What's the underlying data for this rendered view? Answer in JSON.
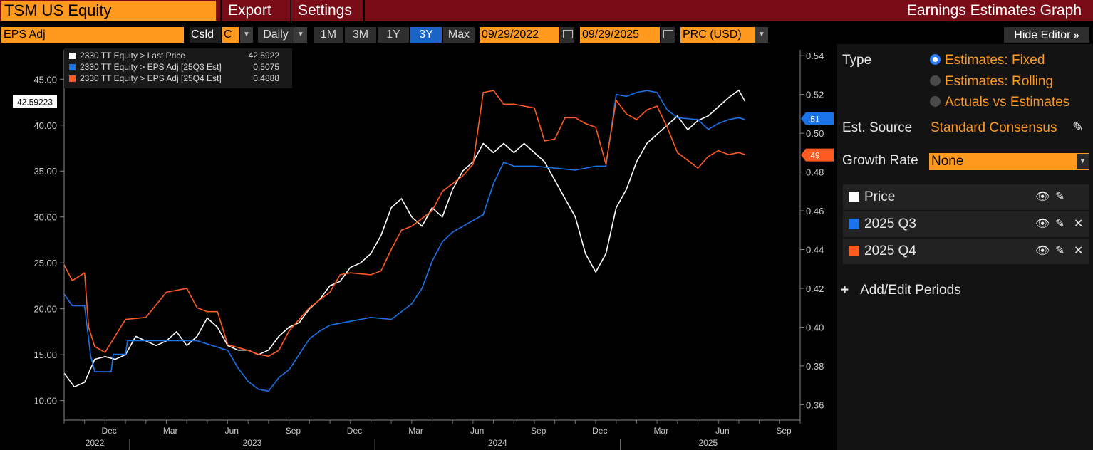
{
  "header": {
    "ticker": "TSM US Equity",
    "menu": [
      "Export",
      "Settings"
    ],
    "window_title": "Earnings Estimates Graph"
  },
  "toolbar": {
    "field": "EPS Adj",
    "csld_label": "Csld",
    "csld_value": "C",
    "periodicity": "Daily",
    "ranges": [
      "1M",
      "3M",
      "1Y",
      "3Y",
      "Max"
    ],
    "active_range": "3Y",
    "start_date": "09/29/2022",
    "end_date": "09/29/2025",
    "currency": "PRC (USD)",
    "hide_editor": "Hide Editor"
  },
  "legend": [
    {
      "name": "2330 TT Equity > Last Price",
      "value": "42.5922",
      "color": "#ffffff"
    },
    {
      "name": "2330 TT Equity > EPS Adj [25Q3 Est]",
      "value": "0.5075",
      "color": "#1a73e8"
    },
    {
      "name": "2330 TT Equity > EPS Adj [25Q4 Est]",
      "value": "0.4888",
      "color": "#ff5a1f"
    }
  ],
  "chart_data": {
    "type": "line",
    "left_axis": {
      "ticks": [
        "45.00",
        "40.00",
        "35.00",
        "30.00",
        "25.00",
        "20.00",
        "15.00",
        "10.00"
      ],
      "range": [
        8.5,
        48.2
      ]
    },
    "right_axis": {
      "ticks": [
        "0.54",
        "0.52",
        "0.50",
        "0.48",
        "0.46",
        "0.44",
        "0.42",
        "0.40",
        "0.38",
        "0.36"
      ],
      "range": [
        0.355,
        0.543
      ]
    },
    "x_months": [
      "Dec",
      "Mar",
      "Jun",
      "Sep",
      "Dec",
      "Mar",
      "Jun",
      "Sep",
      "Dec",
      "Mar",
      "Jun",
      "Sep"
    ],
    "x_years": [
      "2022",
      "2023",
      "2024",
      "2025"
    ],
    "last_price_label": "42.59223",
    "q3_label": ".51",
    "q4_label": ".49",
    "x_range_months": [
      0,
      36
    ],
    "series": [
      {
        "name": "Last Price",
        "axis": "left",
        "color": "#ffffff",
        "points": [
          [
            0,
            13
          ],
          [
            0.5,
            11.5
          ],
          [
            1,
            12
          ],
          [
            1.5,
            14.5
          ],
          [
            2,
            14.8
          ],
          [
            2.5,
            14.5
          ],
          [
            3,
            15
          ],
          [
            3.5,
            17
          ],
          [
            4,
            16.5
          ],
          [
            4.5,
            16
          ],
          [
            5,
            16.5
          ],
          [
            5.5,
            17.5
          ],
          [
            6,
            16
          ],
          [
            6.5,
            17
          ],
          [
            7,
            19
          ],
          [
            7.5,
            18
          ],
          [
            8,
            16
          ],
          [
            8.5,
            15.5
          ],
          [
            9,
            15.5
          ],
          [
            9.5,
            15
          ],
          [
            10,
            15.5
          ],
          [
            10.5,
            17
          ],
          [
            11,
            18
          ],
          [
            11.5,
            18.5
          ],
          [
            12,
            20
          ],
          [
            12.5,
            21
          ],
          [
            13,
            22.5
          ],
          [
            13.5,
            23
          ],
          [
            14,
            24.5
          ],
          [
            14.5,
            25
          ],
          [
            15,
            26
          ],
          [
            15.5,
            28
          ],
          [
            16,
            31
          ],
          [
            16.5,
            32
          ],
          [
            17,
            30
          ],
          [
            17.5,
            29
          ],
          [
            18,
            31
          ],
          [
            18.5,
            30
          ],
          [
            19,
            33
          ],
          [
            19.5,
            35
          ],
          [
            20,
            36
          ],
          [
            20.5,
            38
          ],
          [
            21,
            37
          ],
          [
            21.5,
            38
          ],
          [
            22,
            37
          ],
          [
            22.5,
            38
          ],
          [
            23,
            37
          ],
          [
            23.5,
            36
          ],
          [
            24,
            34
          ],
          [
            24.5,
            32
          ],
          [
            25,
            30
          ],
          [
            25.5,
            26
          ],
          [
            26,
            24
          ],
          [
            26.5,
            26
          ],
          [
            27,
            31
          ],
          [
            27.5,
            33
          ],
          [
            28,
            36
          ],
          [
            28.5,
            38
          ],
          [
            29,
            39
          ],
          [
            29.5,
            40
          ],
          [
            30,
            41
          ],
          [
            30.5,
            39.5
          ],
          [
            31,
            40.5
          ],
          [
            31.5,
            41
          ],
          [
            32,
            42
          ],
          [
            32.5,
            43
          ],
          [
            33,
            43.8
          ],
          [
            33.3,
            42.6
          ]
        ]
      },
      {
        "name": "EPS Adj [25Q3 Est]",
        "axis": "right",
        "color": "#1a73e8",
        "points": [
          [
            0,
            0.417
          ],
          [
            0.4,
            0.411
          ],
          [
            1,
            0.411
          ],
          [
            1.3,
            0.385
          ],
          [
            1.5,
            0.377
          ],
          [
            2.3,
            0.377
          ],
          [
            2.4,
            0.386
          ],
          [
            3,
            0.386
          ],
          [
            3.1,
            0.393
          ],
          [
            5,
            0.393
          ],
          [
            6,
            0.393
          ],
          [
            6.5,
            0.393
          ],
          [
            8,
            0.388
          ],
          [
            8.5,
            0.379
          ],
          [
            9,
            0.372
          ],
          [
            9.5,
            0.368
          ],
          [
            10,
            0.367
          ],
          [
            10.5,
            0.374
          ],
          [
            11,
            0.378
          ],
          [
            11.5,
            0.386
          ],
          [
            12,
            0.394
          ],
          [
            12.5,
            0.398
          ],
          [
            13,
            0.401
          ],
          [
            14,
            0.403
          ],
          [
            15,
            0.405
          ],
          [
            16,
            0.404
          ],
          [
            17,
            0.412
          ],
          [
            17.5,
            0.42
          ],
          [
            18,
            0.434
          ],
          [
            18.5,
            0.444
          ],
          [
            19,
            0.449
          ],
          [
            19.5,
            0.452
          ],
          [
            20,
            0.455
          ],
          [
            20.5,
            0.458
          ],
          [
            21,
            0.474
          ],
          [
            21.5,
            0.485
          ],
          [
            22,
            0.483
          ],
          [
            23,
            0.483
          ],
          [
            24,
            0.482
          ],
          [
            25,
            0.481
          ],
          [
            26,
            0.483
          ],
          [
            26.5,
            0.483
          ],
          [
            27,
            0.52
          ],
          [
            27.5,
            0.519
          ],
          [
            28,
            0.521
          ],
          [
            28.5,
            0.522
          ],
          [
            29,
            0.521
          ],
          [
            29.5,
            0.512
          ],
          [
            30,
            0.508
          ],
          [
            31,
            0.507
          ],
          [
            31.5,
            0.502
          ],
          [
            32,
            0.505
          ],
          [
            32.5,
            0.507
          ],
          [
            33,
            0.508
          ],
          [
            33.3,
            0.507
          ]
        ]
      },
      {
        "name": "EPS Adj [25Q4 Est]",
        "axis": "right",
        "color": "#ff5a1f",
        "points": [
          [
            0,
            0.432
          ],
          [
            0.4,
            0.424
          ],
          [
            1,
            0.428
          ],
          [
            1.2,
            0.4
          ],
          [
            1.5,
            0.39
          ],
          [
            2,
            0.387
          ],
          [
            3,
            0.404
          ],
          [
            4,
            0.405
          ],
          [
            5,
            0.418
          ],
          [
            6,
            0.42
          ],
          [
            6.5,
            0.41
          ],
          [
            7,
            0.408
          ],
          [
            7.5,
            0.408
          ],
          [
            8,
            0.391
          ],
          [
            9,
            0.388
          ],
          [
            9.5,
            0.386
          ],
          [
            10,
            0.385
          ],
          [
            10.5,
            0.388
          ],
          [
            11,
            0.398
          ],
          [
            12,
            0.41
          ],
          [
            13,
            0.418
          ],
          [
            13.5,
            0.427
          ],
          [
            14,
            0.428
          ],
          [
            15,
            0.427
          ],
          [
            15.5,
            0.429
          ],
          [
            16,
            0.44
          ],
          [
            16.5,
            0.45
          ],
          [
            17,
            0.452
          ],
          [
            18,
            0.46
          ],
          [
            18.5,
            0.47
          ],
          [
            19,
            0.474
          ],
          [
            19.5,
            0.478
          ],
          [
            20,
            0.484
          ],
          [
            20.5,
            0.521
          ],
          [
            21,
            0.522
          ],
          [
            21.5,
            0.515
          ],
          [
            22,
            0.515
          ],
          [
            22.5,
            0.514
          ],
          [
            23,
            0.513
          ],
          [
            23.5,
            0.496
          ],
          [
            24,
            0.497
          ],
          [
            24.5,
            0.508
          ],
          [
            25,
            0.508
          ],
          [
            25.5,
            0.505
          ],
          [
            26,
            0.503
          ],
          [
            26.5,
            0.484
          ],
          [
            27,
            0.517
          ],
          [
            27.5,
            0.51
          ],
          [
            28,
            0.507
          ],
          [
            28.5,
            0.512
          ],
          [
            29,
            0.514
          ],
          [
            29.5,
            0.503
          ],
          [
            30,
            0.49
          ],
          [
            30.5,
            0.486
          ],
          [
            31,
            0.482
          ],
          [
            31.5,
            0.488
          ],
          [
            32,
            0.491
          ],
          [
            32.5,
            0.489
          ],
          [
            33,
            0.49
          ],
          [
            33.3,
            0.489
          ]
        ]
      }
    ]
  },
  "panel": {
    "type_label": "Type",
    "type_options": [
      "Estimates: Fixed",
      "Estimates: Rolling",
      "Actuals vs Estimates"
    ],
    "type_selected": 0,
    "est_source_label": "Est. Source",
    "est_source_value": "Standard Consensus",
    "growth_rate_label": "Growth Rate",
    "growth_rate_value": "None",
    "series": [
      {
        "label": "Price",
        "color": "#ffffff",
        "removable": false
      },
      {
        "label": "2025 Q3",
        "color": "#1a73e8",
        "removable": true
      },
      {
        "label": "2025 Q4",
        "color": "#ff5a1f",
        "removable": true
      }
    ],
    "add_periods": "Add/Edit Periods"
  }
}
